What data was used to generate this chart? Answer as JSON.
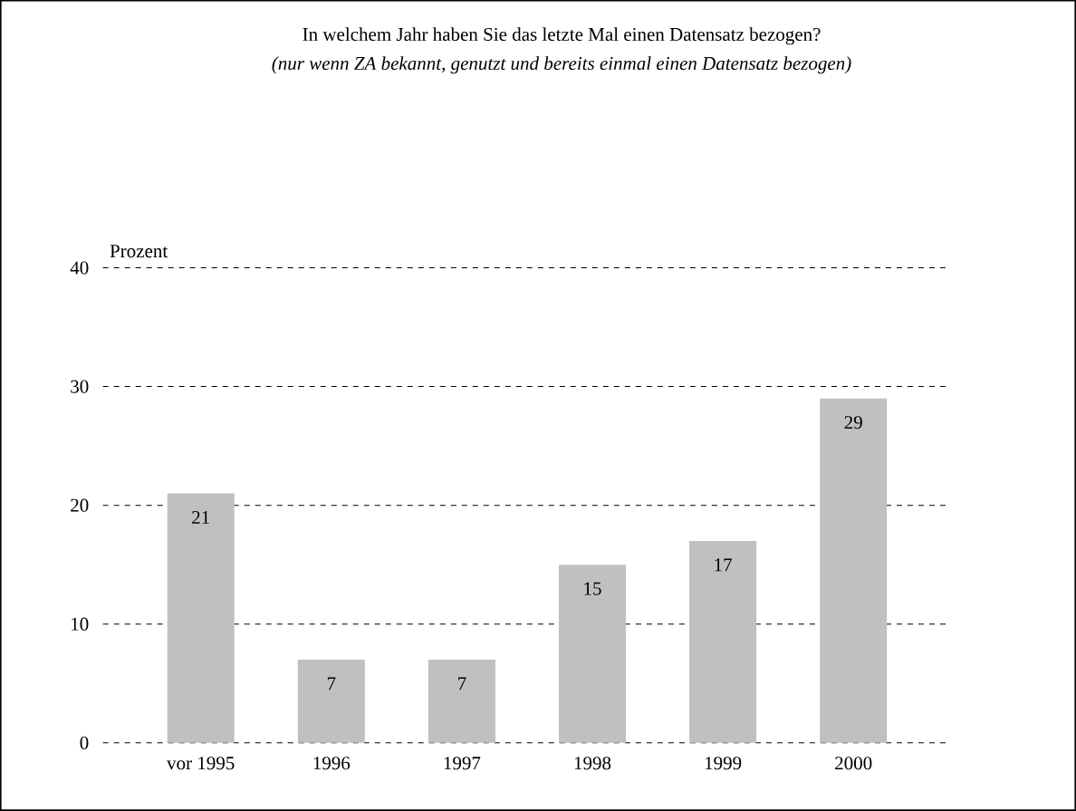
{
  "chart_data": {
    "type": "bar",
    "title": "In welchem Jahr haben Sie das letzte Mal einen Datensatz bezogen?",
    "subtitle": "(nur wenn ZA bekannt, genutzt und bereits einmal einen Datensatz bezogen)",
    "ylabel": "Prozent",
    "categories": [
      "vor 1995",
      "1996",
      "1997",
      "1998",
      "1999",
      "2000"
    ],
    "values": [
      21,
      7,
      7,
      15,
      17,
      29
    ],
    "color": "#c0c0c0",
    "ylim": [
      0,
      40
    ],
    "yticks": [
      0,
      10,
      20,
      30,
      40
    ],
    "grid": "y",
    "data_labels": true
  }
}
